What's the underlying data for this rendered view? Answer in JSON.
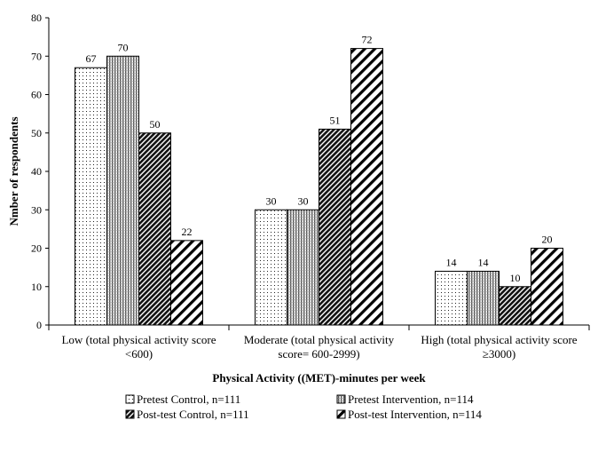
{
  "chart_data": {
    "type": "bar",
    "title": "",
    "xlabel": "Physical Activity ((MET)-minutes per week",
    "ylabel": "Nmber of respondents",
    "ylim": [
      0,
      80
    ],
    "yticks": [
      0,
      10,
      20,
      30,
      40,
      50,
      60,
      70,
      80
    ],
    "grid": false,
    "legend_position": "bottom",
    "categories": [
      [
        "Low (total physical activity score",
        "<600)"
      ],
      [
        "Moderate (total physical activity",
        "score= 600-2999)"
      ],
      [
        "High (total physical activity score",
        "≥3000)"
      ]
    ],
    "series": [
      {
        "name": "Pretest Control, n=111",
        "pattern": "dots",
        "values": [
          67,
          30,
          14
        ]
      },
      {
        "name": "Pretest Intervention, n=114",
        "pattern": "vertical-lines",
        "values": [
          70,
          30,
          14
        ]
      },
      {
        "name": "Post-test Control, n=111",
        "pattern": "dense-diagonal",
        "values": [
          50,
          51,
          10
        ]
      },
      {
        "name": "Post-test Intervention, n=114",
        "pattern": "wide-diagonal",
        "values": [
          22,
          72,
          20
        ]
      }
    ]
  }
}
